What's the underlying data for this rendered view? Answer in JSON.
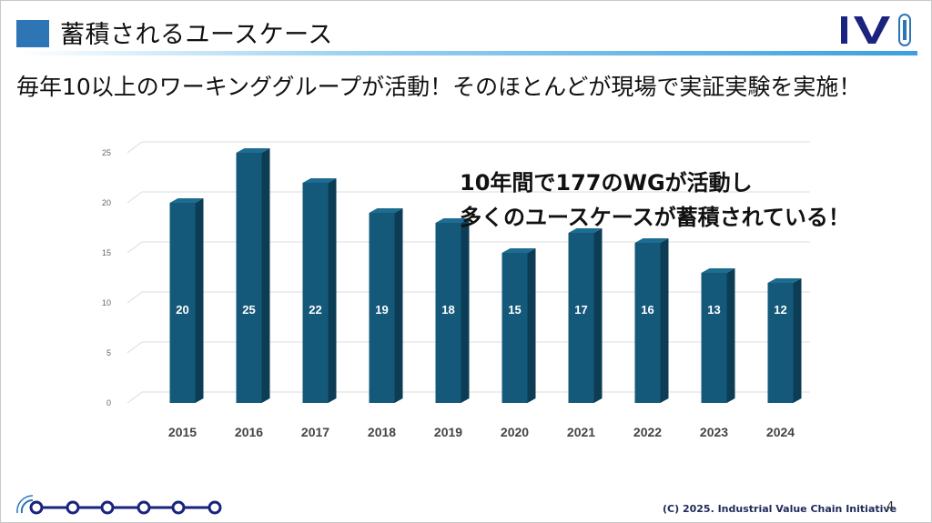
{
  "header": {
    "title": "蓄積されるユースケース"
  },
  "logo": {
    "text": "IVI"
  },
  "subtitle": "毎年10以上のワーキンググループが活動！そのほとんどが現場で実証実験を実施！",
  "callout": {
    "line1": "10年間で177のWGが活動し",
    "line2": "多くのユースケースが蓄積されている！"
  },
  "chart_data": {
    "type": "bar",
    "title": "",
    "xlabel": "",
    "ylabel": "",
    "categories": [
      "2015",
      "2016",
      "2017",
      "2018",
      "2019",
      "2020",
      "2021",
      "2022",
      "2023",
      "2024"
    ],
    "values": [
      20,
      25,
      22,
      19,
      18,
      15,
      17,
      16,
      13,
      12
    ],
    "ylim": [
      0,
      25
    ],
    "yticks": [
      "0",
      "5",
      "10",
      "15",
      "20",
      "25"
    ],
    "grid": true,
    "data_labels": true
  },
  "footer": {
    "copyright": "(C) 2025. Industrial Value Chain Initiative",
    "page": "4"
  },
  "colors": {
    "bar_front": "#15597a",
    "bar_side": "#0d3d55",
    "bar_top": "#1d6c91",
    "accent": "#2e75b6",
    "logo_navy": "#1a237e"
  }
}
